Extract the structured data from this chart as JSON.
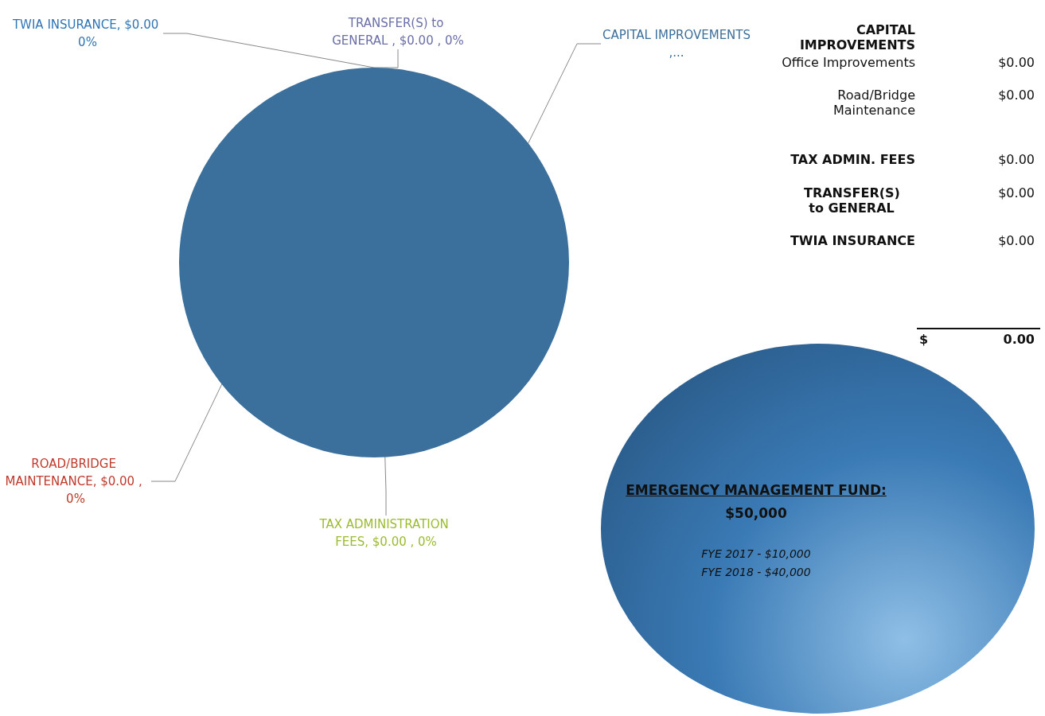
{
  "chart_data": {
    "type": "pie",
    "categories": [
      "TWIA INSURANCE",
      "TRANSFER(S) to GENERAL",
      "CAPITAL IMPROVEMENTS",
      "TAX ADMINISTRATION FEES",
      "ROAD/BRIDGE MAINTENANCE"
    ],
    "values": [
      0,
      0,
      100,
      0,
      0
    ],
    "colors": [
      "#2e75b6",
      "#6b6fa8",
      "#3b6f9c",
      "#9bbb30",
      "#c0392b"
    ],
    "value_labels": [
      ", $0.00 0%",
      " , $0.00 , 0%",
      ",...",
      ", $0.00 , 0%",
      ", $0.00 , 0%"
    ],
    "annotations": [
      "CAPITAL IMPROVEMENTS",
      "Office Improvements",
      "$0.00",
      "Road/Bridge Maintenance",
      "$0.00",
      "TAX ADMIN. FEES",
      "$0.00",
      "TRANSFER(S) to GENERAL",
      "$0.00",
      "TWIA INSURANCE",
      "$0.00",
      "$",
      "0.00",
      "EMERGENCY MANAGEMENT FUND:",
      "$50,000",
      "FYE 2017 - $10,000",
      "FYE 2018 - $40,000"
    ]
  }
}
